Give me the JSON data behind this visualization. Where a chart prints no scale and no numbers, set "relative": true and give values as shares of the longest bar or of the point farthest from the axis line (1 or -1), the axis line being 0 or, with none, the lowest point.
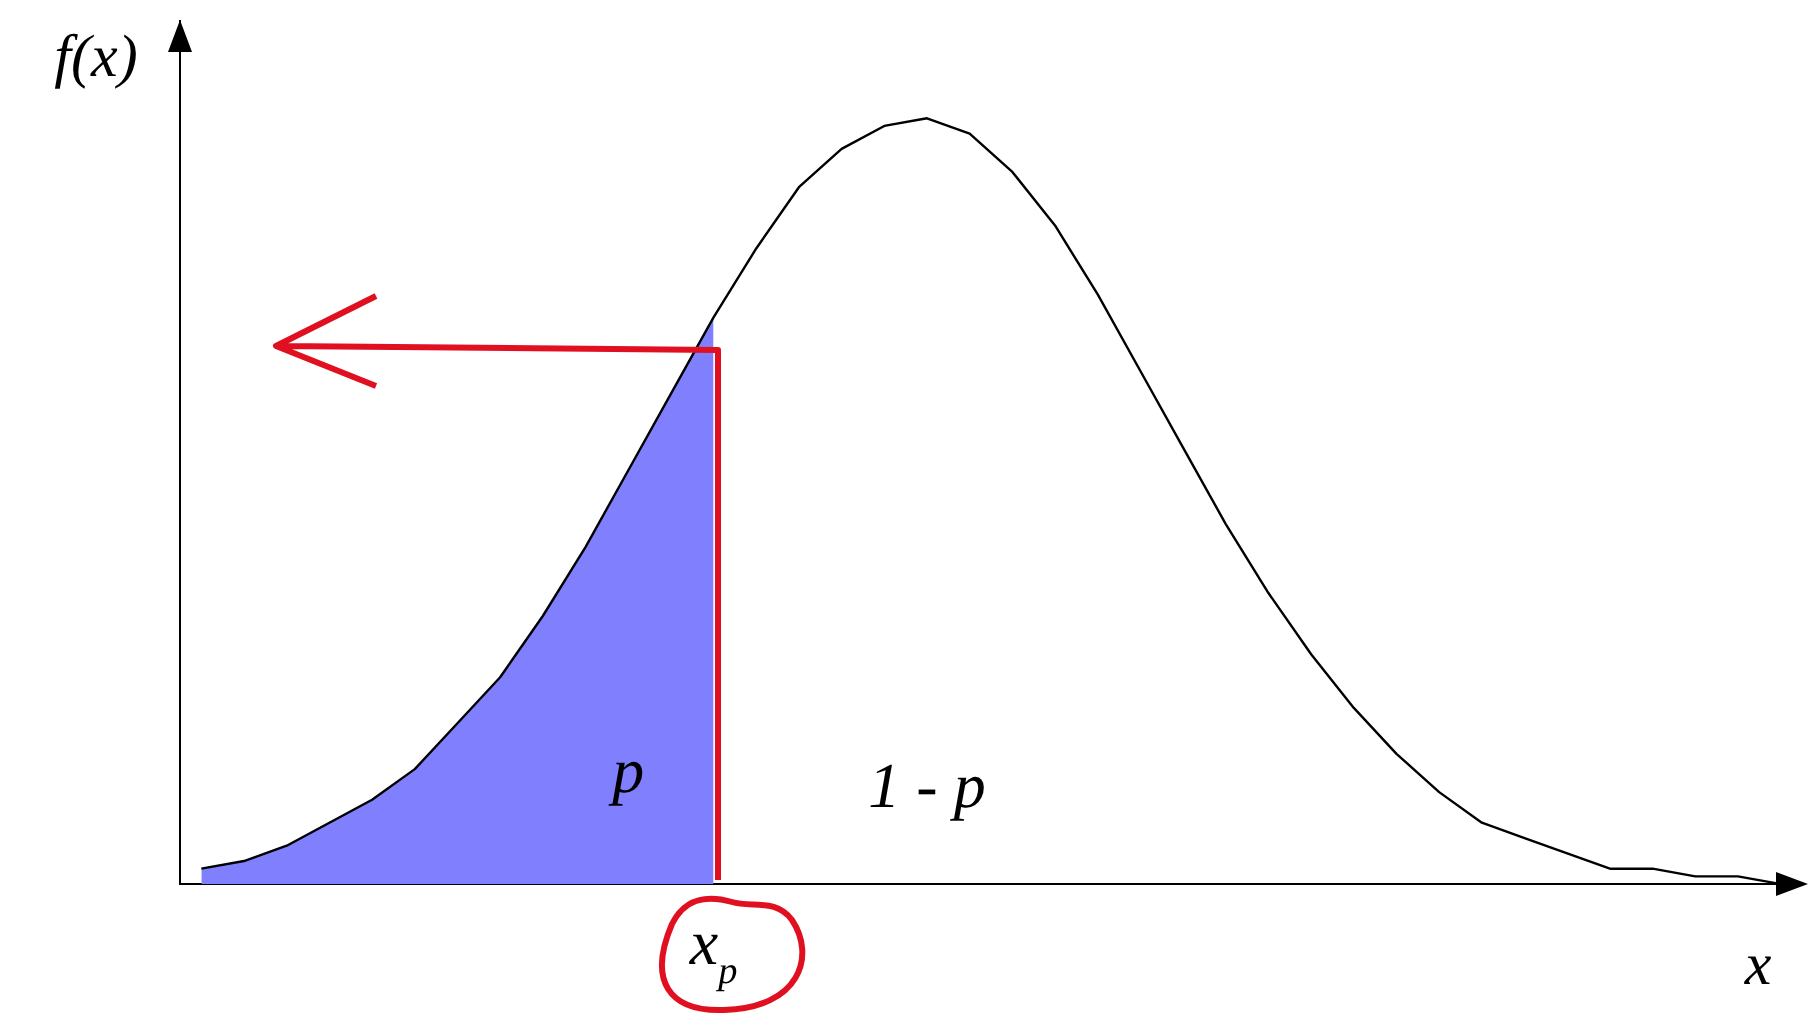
{
  "chart_data": {
    "type": "line",
    "relative": true,
    "xlabel": "x",
    "ylabel": "f(x)",
    "categories": [
      null,
      null,
      null,
      null,
      null,
      null,
      null,
      null,
      null,
      null,
      null,
      null,
      null,
      null,
      null,
      null,
      null,
      null,
      null,
      null,
      null,
      null,
      null,
      null,
      null,
      null,
      null,
      null,
      null,
      null,
      null,
      null,
      null,
      null,
      null,
      null,
      null,
      null
    ],
    "series": [
      {
        "type": "line",
        "color": "#000000",
        "values": [
          0.02,
          0.03,
          0.05,
          0.08,
          0.11,
          0.15,
          0.21,
          0.27,
          0.35,
          0.44,
          0.54,
          0.64,
          0.74,
          0.83,
          0.91,
          0.96,
          0.99,
          1.0,
          0.98,
          0.93,
          0.86,
          0.77,
          0.67,
          0.57,
          0.47,
          0.38,
          0.3,
          0.23,
          0.17,
          0.12,
          0.08,
          0.06,
          0.04,
          0.02,
          0.02,
          0.01,
          0.01,
          0.0
        ]
      },
      {
        "type": "area",
        "color": "#8080ff",
        "values": [
          0.02,
          0.03,
          0.05,
          0.08,
          0.11,
          0.15,
          0.21,
          0.27,
          0.35,
          0.44,
          0.54,
          0.64,
          0.74,
          null,
          null,
          null,
          null,
          null,
          null,
          null,
          null,
          null,
          null,
          null,
          null,
          null,
          null,
          null,
          null,
          null,
          null,
          null,
          null,
          null,
          null,
          null,
          null,
          null
        ]
      }
    ],
    "annotations": [
      "p",
      "1 - p",
      "x$_{p}$"
    ],
    "marker": "none",
    "line_style": "solid",
    "grid": false,
    "legend": false
  }
}
